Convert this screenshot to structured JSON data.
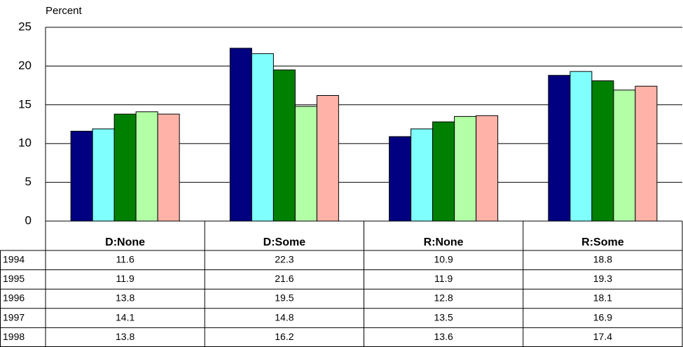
{
  "chart_data": {
    "type": "bar",
    "y_label": "Percent",
    "categories": [
      "D:None",
      "D:Some",
      "R:None",
      "R:Some"
    ],
    "series": [
      {
        "name": "1994",
        "color": "#000080",
        "values": [
          11.6,
          22.3,
          10.9,
          18.8
        ]
      },
      {
        "name": "1995",
        "color": "#80ffff",
        "values": [
          11.9,
          21.6,
          11.9,
          19.3
        ]
      },
      {
        "name": "1996",
        "color": "#008000",
        "values": [
          13.8,
          19.5,
          12.8,
          18.1
        ]
      },
      {
        "name": "1997",
        "color": "#b3ffa6",
        "values": [
          14.1,
          14.8,
          13.5,
          16.9
        ]
      },
      {
        "name": "1998",
        "color": "#ffb3a8",
        "values": [
          13.8,
          16.2,
          13.6,
          17.4
        ]
      }
    ],
    "ylim": [
      0,
      25
    ],
    "yticks": [
      0,
      5,
      10,
      15,
      20,
      25
    ],
    "grid": true
  }
}
